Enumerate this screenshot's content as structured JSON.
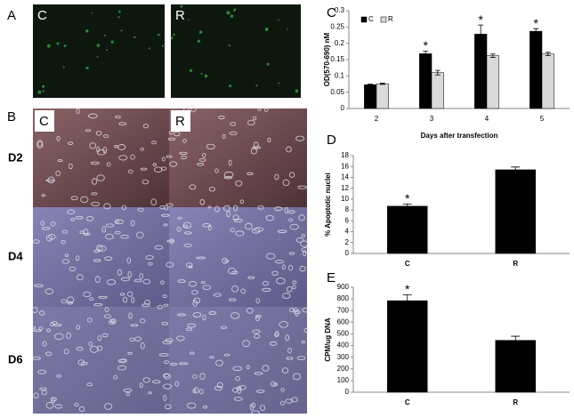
{
  "figure": {
    "panel_labels": [
      "A",
      "B"
    ],
    "fluorescence_labels": [
      "C",
      "R"
    ],
    "microscopy_columns": [
      "C",
      "R"
    ],
    "microscopy_rows": [
      "D2",
      "D4",
      "D6"
    ]
  },
  "chart_data": [
    {
      "type": "bar",
      "panel": "C",
      "ylabel": "OD(570-690) nM",
      "xlabel": "Days after transfection",
      "categories": [
        "2",
        "3",
        "4",
        "5"
      ],
      "series": [
        {
          "name": "C",
          "color": "#000000",
          "values": [
            0.073,
            0.168,
            0.228,
            0.237
          ],
          "errors": [
            0.002,
            0.008,
            0.028,
            0.008
          ]
        },
        {
          "name": "R",
          "color": "#d9d9d9",
          "values": [
            0.076,
            0.11,
            0.162,
            0.167
          ],
          "errors": [
            0.002,
            0.007,
            0.005,
            0.005
          ]
        }
      ],
      "ylim": [
        0,
        0.3
      ],
      "yticks": [
        0,
        0.05,
        0.1,
        0.15,
        0.2,
        0.25,
        0.3
      ],
      "legend": "top-left",
      "annotations": [
        {
          "text": "*",
          "x": "3"
        },
        {
          "text": "*",
          "x": "4"
        },
        {
          "text": "*",
          "x": "5"
        }
      ]
    },
    {
      "type": "bar",
      "panel": "D",
      "ylabel": "% Apoptotic nuclei",
      "categories": [
        "C",
        "R"
      ],
      "series": [
        {
          "color": "#000000",
          "values": [
            8.7,
            15.4
          ],
          "errors": [
            0.4,
            0.5
          ]
        }
      ],
      "ylim": [
        0,
        18
      ],
      "yticks": [
        0,
        2,
        4,
        6,
        8,
        10,
        12,
        14,
        16,
        18
      ],
      "annotations": [
        {
          "text": "*",
          "x": "C"
        }
      ]
    },
    {
      "type": "bar",
      "panel": "E",
      "ylabel": "CPM/ug DNA",
      "categories": [
        "C",
        "R"
      ],
      "series": [
        {
          "color": "#000000",
          "values": [
            785,
            445
          ],
          "errors": [
            50,
            35
          ]
        }
      ],
      "ylim": [
        0,
        900
      ],
      "yticks": [
        0,
        100,
        200,
        300,
        400,
        500,
        600,
        700,
        800,
        900
      ],
      "annotations": [
        {
          "text": "*",
          "x": "C"
        }
      ]
    }
  ]
}
